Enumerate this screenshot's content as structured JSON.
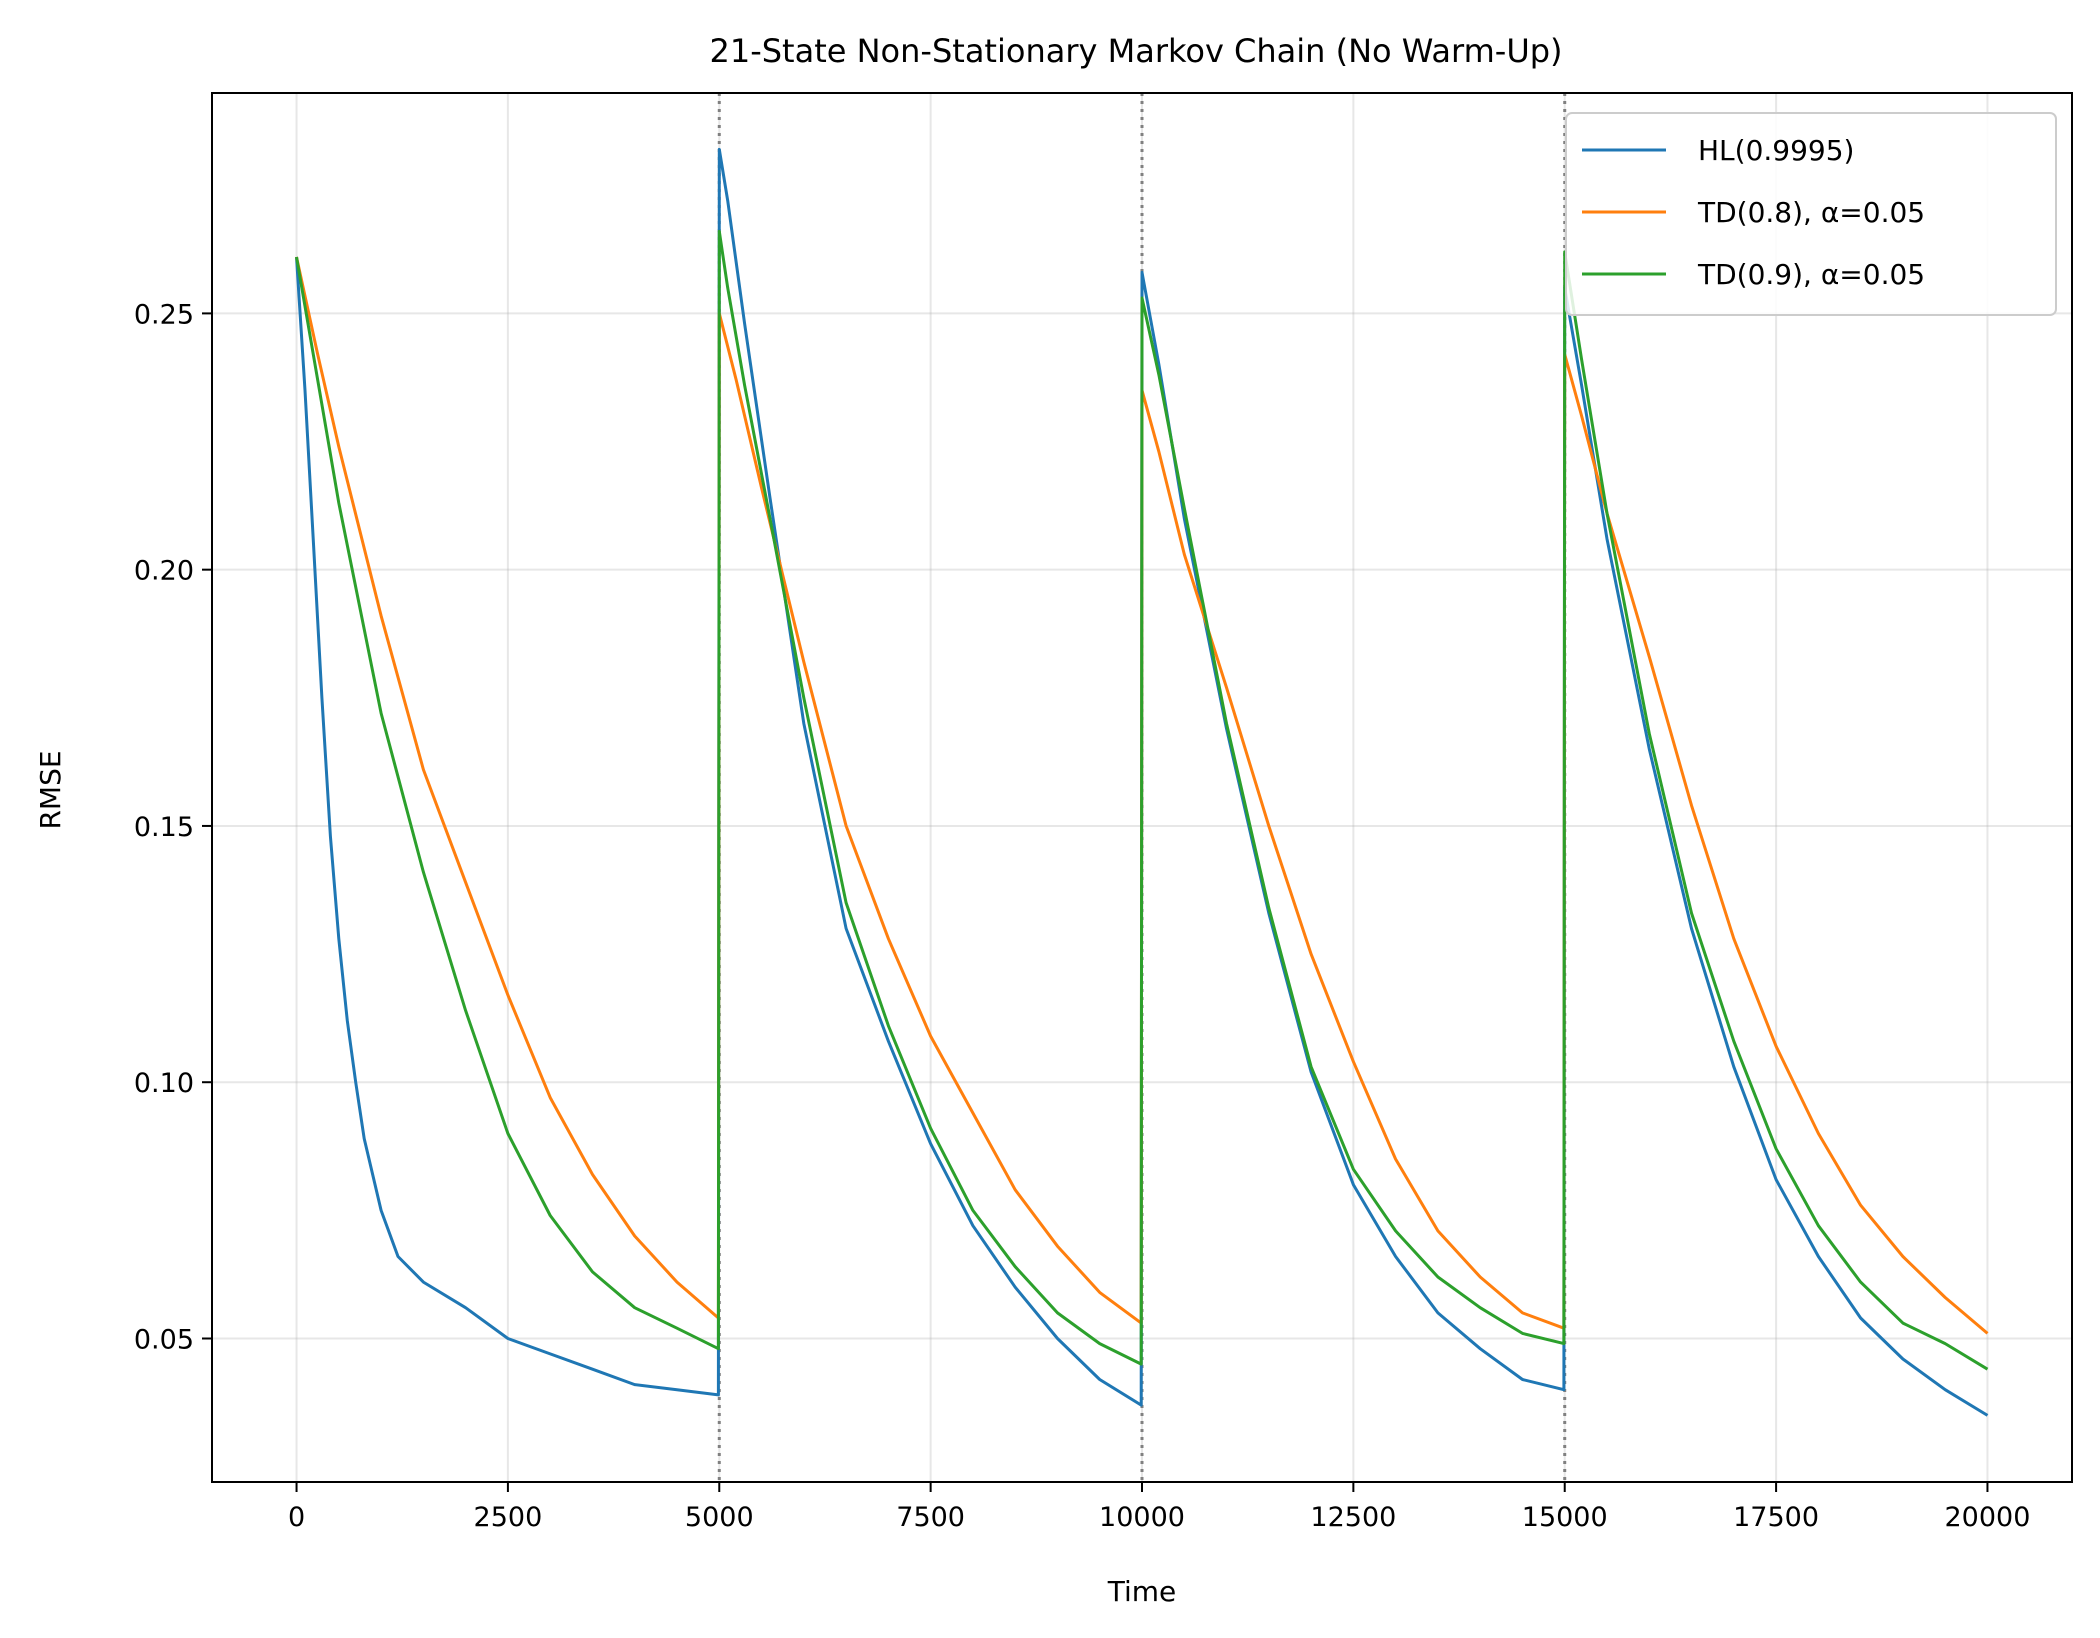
{
  "chart_data": {
    "type": "line",
    "title": "21-State Non-Stationary Markov Chain (No Warm-Up)",
    "xlabel": "Time",
    "ylabel": "RMSE",
    "xlim": [
      -1000,
      21000
    ],
    "ylim": [
      0.022,
      0.293
    ],
    "xticks": [
      0,
      2500,
      5000,
      7500,
      10000,
      12500,
      15000,
      17500,
      20000
    ],
    "xtick_labels": [
      "0",
      "2500",
      "5000",
      "7500",
      "10000",
      "12500",
      "15000",
      "17500",
      "20000"
    ],
    "yticks": [
      0.05,
      0.1,
      0.15,
      0.2,
      0.25
    ],
    "ytick_labels": [
      "0.05",
      "0.10",
      "0.15",
      "0.20",
      "0.25"
    ],
    "grid": true,
    "legend_position": "top-right",
    "vlines": [
      5000,
      10000,
      15000
    ],
    "series": [
      {
        "name": "HL(0.9995)",
        "color": "#1f77b4",
        "points": [
          [
            0,
            0.261
          ],
          [
            100,
            0.235
          ],
          [
            200,
            0.205
          ],
          [
            300,
            0.175
          ],
          [
            400,
            0.148
          ],
          [
            500,
            0.128
          ],
          [
            600,
            0.112
          ],
          [
            700,
            0.1
          ],
          [
            800,
            0.089
          ],
          [
            1000,
            0.075
          ],
          [
            1200,
            0.066
          ],
          [
            1500,
            0.061
          ],
          [
            2000,
            0.056
          ],
          [
            2500,
            0.05
          ],
          [
            3000,
            0.047
          ],
          [
            3500,
            0.044
          ],
          [
            4000,
            0.041
          ],
          [
            4500,
            0.04
          ],
          [
            4990,
            0.039
          ],
          [
            5000,
            0.282
          ],
          [
            5100,
            0.272
          ],
          [
            5300,
            0.248
          ],
          [
            5600,
            0.214
          ],
          [
            6000,
            0.17
          ],
          [
            6500,
            0.13
          ],
          [
            7000,
            0.108
          ],
          [
            7500,
            0.088
          ],
          [
            8000,
            0.072
          ],
          [
            8500,
            0.06
          ],
          [
            9000,
            0.05
          ],
          [
            9500,
            0.042
          ],
          [
            9990,
            0.037
          ],
          [
            10000,
            0.258
          ],
          [
            10200,
            0.24
          ],
          [
            10500,
            0.21
          ],
          [
            11000,
            0.169
          ],
          [
            11500,
            0.133
          ],
          [
            12000,
            0.102
          ],
          [
            12500,
            0.08
          ],
          [
            13000,
            0.066
          ],
          [
            13500,
            0.055
          ],
          [
            14000,
            0.048
          ],
          [
            14500,
            0.042
          ],
          [
            14990,
            0.04
          ],
          [
            15000,
            0.255
          ],
          [
            15200,
            0.236
          ],
          [
            15500,
            0.206
          ],
          [
            16000,
            0.165
          ],
          [
            16500,
            0.13
          ],
          [
            17000,
            0.103
          ],
          [
            17500,
            0.081
          ],
          [
            18000,
            0.066
          ],
          [
            18500,
            0.054
          ],
          [
            19000,
            0.046
          ],
          [
            19500,
            0.04
          ],
          [
            20000,
            0.035
          ]
        ]
      },
      {
        "name": "TD(0.8), α=0.05",
        "color": "#ff7f0e",
        "points": [
          [
            0,
            0.261
          ],
          [
            250,
            0.242
          ],
          [
            500,
            0.224
          ],
          [
            1000,
            0.191
          ],
          [
            1500,
            0.161
          ],
          [
            2000,
            0.139
          ],
          [
            2500,
            0.117
          ],
          [
            3000,
            0.097
          ],
          [
            3500,
            0.082
          ],
          [
            4000,
            0.07
          ],
          [
            4500,
            0.061
          ],
          [
            4990,
            0.054
          ],
          [
            5000,
            0.25
          ],
          [
            5200,
            0.237
          ],
          [
            5500,
            0.216
          ],
          [
            6000,
            0.182
          ],
          [
            6500,
            0.15
          ],
          [
            7000,
            0.128
          ],
          [
            7500,
            0.109
          ],
          [
            8000,
            0.094
          ],
          [
            8500,
            0.079
          ],
          [
            9000,
            0.068
          ],
          [
            9500,
            0.059
          ],
          [
            9990,
            0.053
          ],
          [
            10000,
            0.235
          ],
          [
            10200,
            0.223
          ],
          [
            10500,
            0.203
          ],
          [
            11000,
            0.177
          ],
          [
            11500,
            0.15
          ],
          [
            12000,
            0.125
          ],
          [
            12500,
            0.104
          ],
          [
            13000,
            0.085
          ],
          [
            13500,
            0.071
          ],
          [
            14000,
            0.062
          ],
          [
            14500,
            0.055
          ],
          [
            14990,
            0.052
          ],
          [
            15000,
            0.242
          ],
          [
            15200,
            0.23
          ],
          [
            15500,
            0.211
          ],
          [
            16000,
            0.183
          ],
          [
            16500,
            0.154
          ],
          [
            17000,
            0.128
          ],
          [
            17500,
            0.107
          ],
          [
            18000,
            0.09
          ],
          [
            18500,
            0.076
          ],
          [
            19000,
            0.066
          ],
          [
            19500,
            0.058
          ],
          [
            20000,
            0.051
          ]
        ]
      },
      {
        "name": "TD(0.9), α=0.05",
        "color": "#2ca02c",
        "points": [
          [
            0,
            0.261
          ],
          [
            250,
            0.237
          ],
          [
            500,
            0.213
          ],
          [
            1000,
            0.172
          ],
          [
            1500,
            0.141
          ],
          [
            2000,
            0.114
          ],
          [
            2500,
            0.09
          ],
          [
            3000,
            0.074
          ],
          [
            3500,
            0.063
          ],
          [
            4000,
            0.056
          ],
          [
            4500,
            0.052
          ],
          [
            4990,
            0.048
          ],
          [
            5000,
            0.266
          ],
          [
            5100,
            0.255
          ],
          [
            5300,
            0.236
          ],
          [
            5600,
            0.21
          ],
          [
            6000,
            0.175
          ],
          [
            6500,
            0.135
          ],
          [
            7000,
            0.111
          ],
          [
            7500,
            0.091
          ],
          [
            8000,
            0.075
          ],
          [
            8500,
            0.064
          ],
          [
            9000,
            0.055
          ],
          [
            9500,
            0.049
          ],
          [
            9990,
            0.045
          ],
          [
            10000,
            0.253
          ],
          [
            10200,
            0.238
          ],
          [
            10500,
            0.212
          ],
          [
            11000,
            0.17
          ],
          [
            11500,
            0.134
          ],
          [
            12000,
            0.103
          ],
          [
            12500,
            0.083
          ],
          [
            13000,
            0.071
          ],
          [
            13500,
            0.062
          ],
          [
            14000,
            0.056
          ],
          [
            14500,
            0.051
          ],
          [
            14990,
            0.049
          ],
          [
            15000,
            0.262
          ],
          [
            15200,
            0.241
          ],
          [
            15500,
            0.211
          ],
          [
            16000,
            0.168
          ],
          [
            16500,
            0.133
          ],
          [
            17000,
            0.108
          ],
          [
            17500,
            0.087
          ],
          [
            18000,
            0.072
          ],
          [
            18500,
            0.061
          ],
          [
            19000,
            0.053
          ],
          [
            19500,
            0.049
          ],
          [
            20000,
            0.044
          ]
        ]
      }
    ]
  }
}
